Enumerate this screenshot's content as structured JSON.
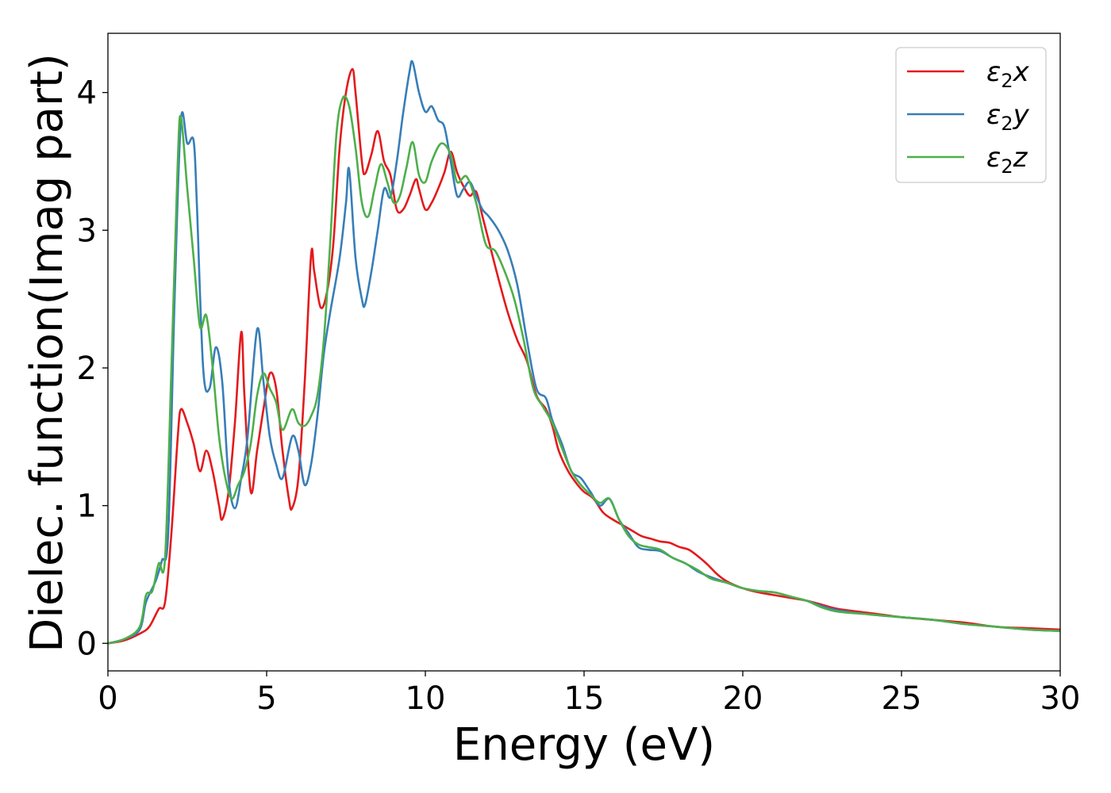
{
  "chart_data": {
    "type": "line",
    "xlabel": "Energy (eV)",
    "ylabel": "Dielec. function(Imag part)",
    "xlim": [
      0,
      30
    ],
    "ylim": [
      -0.2,
      4.43
    ],
    "xticks": [
      0,
      5,
      10,
      15,
      20,
      25,
      30
    ],
    "yticks": [
      0,
      1,
      2,
      3,
      4
    ],
    "grid": false,
    "legend_position": "top-right",
    "series": [
      {
        "name": "ε₂x",
        "legend": {
          "base": "ε",
          "sub": "2",
          "suffix": "x"
        },
        "color": "#e41a1c",
        "points": [
          [
            0,
            0
          ],
          [
            0.5,
            0.02
          ],
          [
            1.0,
            0.07
          ],
          [
            1.3,
            0.12
          ],
          [
            1.6,
            0.25
          ],
          [
            1.8,
            0.3
          ],
          [
            2.0,
            0.8
          ],
          [
            2.2,
            1.5
          ],
          [
            2.3,
            1.7
          ],
          [
            2.5,
            1.6
          ],
          [
            2.7,
            1.45
          ],
          [
            2.9,
            1.25
          ],
          [
            3.1,
            1.4
          ],
          [
            3.3,
            1.25
          ],
          [
            3.5,
            1.0
          ],
          [
            3.6,
            0.9
          ],
          [
            3.8,
            1.1
          ],
          [
            4.0,
            1.6
          ],
          [
            4.2,
            2.26
          ],
          [
            4.3,
            1.8
          ],
          [
            4.5,
            1.1
          ],
          [
            4.7,
            1.4
          ],
          [
            4.9,
            1.7
          ],
          [
            5.1,
            1.96
          ],
          [
            5.3,
            1.85
          ],
          [
            5.5,
            1.4
          ],
          [
            5.7,
            1.05
          ],
          [
            5.8,
            0.98
          ],
          [
            6.0,
            1.2
          ],
          [
            6.2,
            1.9
          ],
          [
            6.4,
            2.82
          ],
          [
            6.5,
            2.7
          ],
          [
            6.7,
            2.44
          ],
          [
            6.9,
            2.55
          ],
          [
            7.1,
            2.9
          ],
          [
            7.3,
            3.6
          ],
          [
            7.5,
            4.0
          ],
          [
            7.7,
            4.17
          ],
          [
            7.8,
            4.0
          ],
          [
            8.0,
            3.5
          ],
          [
            8.1,
            3.41
          ],
          [
            8.3,
            3.55
          ],
          [
            8.5,
            3.72
          ],
          [
            8.7,
            3.5
          ],
          [
            8.9,
            3.4
          ],
          [
            9.1,
            3.15
          ],
          [
            9.3,
            3.15
          ],
          [
            9.5,
            3.25
          ],
          [
            9.7,
            3.37
          ],
          [
            9.8,
            3.3
          ],
          [
            10.0,
            3.15
          ],
          [
            10.2,
            3.2
          ],
          [
            10.4,
            3.3
          ],
          [
            10.6,
            3.42
          ],
          [
            10.8,
            3.57
          ],
          [
            11.0,
            3.42
          ],
          [
            11.2,
            3.32
          ],
          [
            11.4,
            3.25
          ],
          [
            11.6,
            3.28
          ],
          [
            11.8,
            3.1
          ],
          [
            12.0,
            2.92
          ],
          [
            12.3,
            2.65
          ],
          [
            12.6,
            2.4
          ],
          [
            12.9,
            2.2
          ],
          [
            13.2,
            2.05
          ],
          [
            13.5,
            1.8
          ],
          [
            13.8,
            1.7
          ],
          [
            14.0,
            1.58
          ],
          [
            14.2,
            1.4
          ],
          [
            14.5,
            1.25
          ],
          [
            14.8,
            1.15
          ],
          [
            15.0,
            1.1
          ],
          [
            15.3,
            1.05
          ],
          [
            15.6,
            0.95
          ],
          [
            15.9,
            0.9
          ],
          [
            16.2,
            0.86
          ],
          [
            16.5,
            0.82
          ],
          [
            16.8,
            0.78
          ],
          [
            17.1,
            0.76
          ],
          [
            17.4,
            0.74
          ],
          [
            17.7,
            0.73
          ],
          [
            18.0,
            0.7
          ],
          [
            18.3,
            0.68
          ],
          [
            18.6,
            0.63
          ],
          [
            18.9,
            0.57
          ],
          [
            19.2,
            0.5
          ],
          [
            19.5,
            0.45
          ],
          [
            20.0,
            0.4
          ],
          [
            20.5,
            0.37
          ],
          [
            21.0,
            0.35
          ],
          [
            21.5,
            0.33
          ],
          [
            22.0,
            0.31
          ],
          [
            22.5,
            0.28
          ],
          [
            23.0,
            0.25
          ],
          [
            24.0,
            0.22
          ],
          [
            25.0,
            0.19
          ],
          [
            26.0,
            0.17
          ],
          [
            27.0,
            0.15
          ],
          [
            28.0,
            0.12
          ],
          [
            29.0,
            0.11
          ],
          [
            30.0,
            0.1
          ]
        ]
      },
      {
        "name": "ε₂y",
        "legend": {
          "base": "ε",
          "sub": "2",
          "suffix": "y"
        },
        "color": "#377eb8",
        "points": [
          [
            0,
            0
          ],
          [
            0.5,
            0.03
          ],
          [
            1.0,
            0.1
          ],
          [
            1.2,
            0.3
          ],
          [
            1.5,
            0.45
          ],
          [
            1.7,
            0.6
          ],
          [
            1.9,
            0.8
          ],
          [
            2.1,
            2.5
          ],
          [
            2.3,
            3.8
          ],
          [
            2.5,
            3.63
          ],
          [
            2.7,
            3.65
          ],
          [
            2.8,
            3.2
          ],
          [
            3.0,
            2.0
          ],
          [
            3.2,
            1.85
          ],
          [
            3.4,
            2.15
          ],
          [
            3.6,
            1.9
          ],
          [
            3.8,
            1.2
          ],
          [
            4.0,
            0.98
          ],
          [
            4.2,
            1.2
          ],
          [
            4.4,
            1.5
          ],
          [
            4.7,
            2.28
          ],
          [
            4.9,
            1.9
          ],
          [
            5.1,
            1.5
          ],
          [
            5.3,
            1.3
          ],
          [
            5.5,
            1.2
          ],
          [
            5.8,
            1.5
          ],
          [
            6.0,
            1.4
          ],
          [
            6.2,
            1.15
          ],
          [
            6.4,
            1.3
          ],
          [
            6.6,
            1.65
          ],
          [
            6.8,
            2.1
          ],
          [
            7.0,
            2.4
          ],
          [
            7.3,
            2.8
          ],
          [
            7.5,
            3.2
          ],
          [
            7.6,
            3.44
          ],
          [
            7.8,
            2.8
          ],
          [
            8.0,
            2.5
          ],
          [
            8.1,
            2.46
          ],
          [
            8.3,
            2.7
          ],
          [
            8.5,
            3.0
          ],
          [
            8.7,
            3.3
          ],
          [
            8.9,
            3.24
          ],
          [
            9.1,
            3.5
          ],
          [
            9.3,
            3.85
          ],
          [
            9.5,
            4.15
          ],
          [
            9.6,
            4.22
          ],
          [
            9.8,
            4.0
          ],
          [
            10.0,
            3.86
          ],
          [
            10.2,
            3.9
          ],
          [
            10.4,
            3.8
          ],
          [
            10.6,
            3.75
          ],
          [
            10.8,
            3.5
          ],
          [
            11.0,
            3.25
          ],
          [
            11.2,
            3.3
          ],
          [
            11.4,
            3.35
          ],
          [
            11.6,
            3.25
          ],
          [
            11.8,
            3.15
          ],
          [
            12.0,
            3.1
          ],
          [
            12.3,
            3.0
          ],
          [
            12.6,
            2.85
          ],
          [
            12.9,
            2.6
          ],
          [
            13.2,
            2.2
          ],
          [
            13.5,
            1.85
          ],
          [
            13.8,
            1.78
          ],
          [
            14.0,
            1.62
          ],
          [
            14.3,
            1.45
          ],
          [
            14.6,
            1.25
          ],
          [
            14.9,
            1.2
          ],
          [
            15.2,
            1.1
          ],
          [
            15.5,
            1.0
          ],
          [
            15.8,
            1.05
          ],
          [
            16.1,
            0.9
          ],
          [
            16.4,
            0.8
          ],
          [
            16.7,
            0.7
          ],
          [
            17.0,
            0.68
          ],
          [
            17.4,
            0.67
          ],
          [
            17.8,
            0.62
          ],
          [
            18.2,
            0.58
          ],
          [
            18.6,
            0.52
          ],
          [
            19.0,
            0.48
          ],
          [
            19.5,
            0.44
          ],
          [
            20.0,
            0.4
          ],
          [
            20.5,
            0.38
          ],
          [
            21.0,
            0.37
          ],
          [
            21.5,
            0.34
          ],
          [
            22.0,
            0.31
          ],
          [
            22.5,
            0.27
          ],
          [
            23.0,
            0.24
          ],
          [
            24.0,
            0.21
          ],
          [
            25.0,
            0.19
          ],
          [
            26.0,
            0.17
          ],
          [
            27.0,
            0.14
          ],
          [
            28.0,
            0.12
          ],
          [
            29.0,
            0.1
          ],
          [
            30.0,
            0.09
          ]
        ]
      },
      {
        "name": "ε₂z",
        "legend": {
          "base": "ε",
          "sub": "2",
          "suffix": "z"
        },
        "color": "#4daf4a",
        "points": [
          [
            0,
            0
          ],
          [
            0.5,
            0.03
          ],
          [
            1.0,
            0.12
          ],
          [
            1.2,
            0.35
          ],
          [
            1.4,
            0.38
          ],
          [
            1.6,
            0.58
          ],
          [
            1.8,
            0.62
          ],
          [
            2.0,
            2.0
          ],
          [
            2.2,
            3.5
          ],
          [
            2.3,
            3.82
          ],
          [
            2.5,
            3.3
          ],
          [
            2.7,
            2.8
          ],
          [
            2.9,
            2.3
          ],
          [
            3.1,
            2.38
          ],
          [
            3.3,
            2.0
          ],
          [
            3.5,
            1.5
          ],
          [
            3.7,
            1.2
          ],
          [
            3.9,
            1.05
          ],
          [
            4.1,
            1.15
          ],
          [
            4.3,
            1.25
          ],
          [
            4.5,
            1.45
          ],
          [
            4.7,
            1.8
          ],
          [
            4.9,
            1.96
          ],
          [
            5.1,
            1.85
          ],
          [
            5.3,
            1.75
          ],
          [
            5.5,
            1.55
          ],
          [
            5.8,
            1.7
          ],
          [
            6.0,
            1.6
          ],
          [
            6.2,
            1.58
          ],
          [
            6.4,
            1.65
          ],
          [
            6.6,
            1.8
          ],
          [
            6.8,
            2.2
          ],
          [
            7.0,
            2.9
          ],
          [
            7.2,
            3.7
          ],
          [
            7.4,
            3.96
          ],
          [
            7.6,
            3.9
          ],
          [
            7.8,
            3.6
          ],
          [
            8.0,
            3.2
          ],
          [
            8.2,
            3.1
          ],
          [
            8.4,
            3.3
          ],
          [
            8.6,
            3.48
          ],
          [
            8.8,
            3.35
          ],
          [
            9.0,
            3.2
          ],
          [
            9.2,
            3.25
          ],
          [
            9.4,
            3.45
          ],
          [
            9.6,
            3.64
          ],
          [
            9.8,
            3.4
          ],
          [
            10.0,
            3.35
          ],
          [
            10.2,
            3.5
          ],
          [
            10.5,
            3.63
          ],
          [
            10.8,
            3.55
          ],
          [
            11.0,
            3.35
          ],
          [
            11.3,
            3.39
          ],
          [
            11.6,
            3.2
          ],
          [
            11.9,
            2.9
          ],
          [
            12.2,
            2.85
          ],
          [
            12.5,
            2.7
          ],
          [
            12.8,
            2.5
          ],
          [
            13.1,
            2.2
          ],
          [
            13.4,
            1.85
          ],
          [
            13.7,
            1.72
          ],
          [
            14.0,
            1.6
          ],
          [
            14.3,
            1.42
          ],
          [
            14.6,
            1.25
          ],
          [
            14.9,
            1.15
          ],
          [
            15.2,
            1.08
          ],
          [
            15.5,
            1.02
          ],
          [
            15.8,
            1.05
          ],
          [
            16.1,
            0.9
          ],
          [
            16.4,
            0.78
          ],
          [
            16.7,
            0.72
          ],
          [
            17.0,
            0.7
          ],
          [
            17.4,
            0.68
          ],
          [
            17.8,
            0.62
          ],
          [
            18.2,
            0.58
          ],
          [
            18.6,
            0.53
          ],
          [
            19.0,
            0.47
          ],
          [
            19.5,
            0.44
          ],
          [
            20.0,
            0.4
          ],
          [
            20.5,
            0.38
          ],
          [
            21.0,
            0.37
          ],
          [
            21.5,
            0.34
          ],
          [
            22.0,
            0.31
          ],
          [
            22.5,
            0.26
          ],
          [
            23.0,
            0.23
          ],
          [
            24.0,
            0.21
          ],
          [
            25.0,
            0.19
          ],
          [
            26.0,
            0.17
          ],
          [
            27.0,
            0.14
          ],
          [
            28.0,
            0.12
          ],
          [
            29.0,
            0.1
          ],
          [
            30.0,
            0.09
          ]
        ]
      }
    ]
  }
}
